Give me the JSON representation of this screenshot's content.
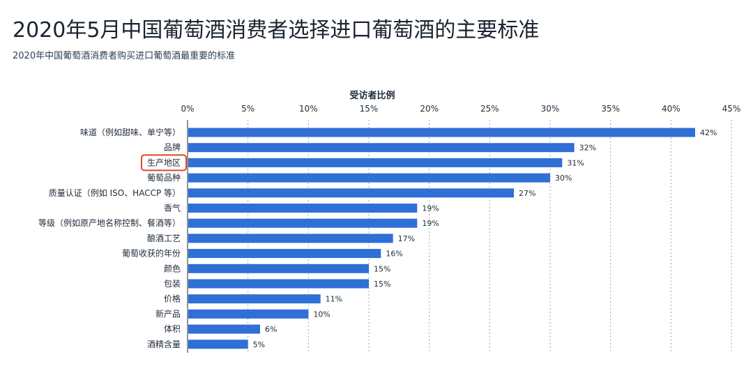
{
  "header": {
    "title": "2020年5月中国葡萄酒消费者选择进口葡萄酒的主要标准",
    "subtitle": "2020年中国葡萄酒消费者购买进口葡萄酒最重要的标准"
  },
  "chart_data": {
    "type": "bar",
    "orientation": "horizontal",
    "xlabel": "受访者比例",
    "xlim": [
      0,
      45
    ],
    "xticks": [
      0,
      5,
      10,
      15,
      20,
      25,
      30,
      35,
      40,
      45
    ],
    "tick_suffix": "%",
    "grid": true,
    "bar_color": "#2f6fd6",
    "highlight_color": "#e0452b",
    "highlighted_category": "生产地区",
    "categories": [
      "味道（例如甜味、单宁等）",
      "品牌",
      "生产地区",
      "葡萄品种",
      "质量认证（例如 ISO、HACCP 等）",
      "香气",
      "等级（例如原产地名称控制、餐酒等）",
      "酿酒工艺",
      "葡萄收获的年份",
      "颜色",
      "包装",
      "价格",
      "新产品",
      "体积",
      "酒精含量"
    ],
    "values": [
      42,
      32,
      31,
      30,
      27,
      19,
      19,
      17,
      16,
      15,
      15,
      11,
      10,
      6,
      5
    ],
    "value_suffix": "%"
  }
}
